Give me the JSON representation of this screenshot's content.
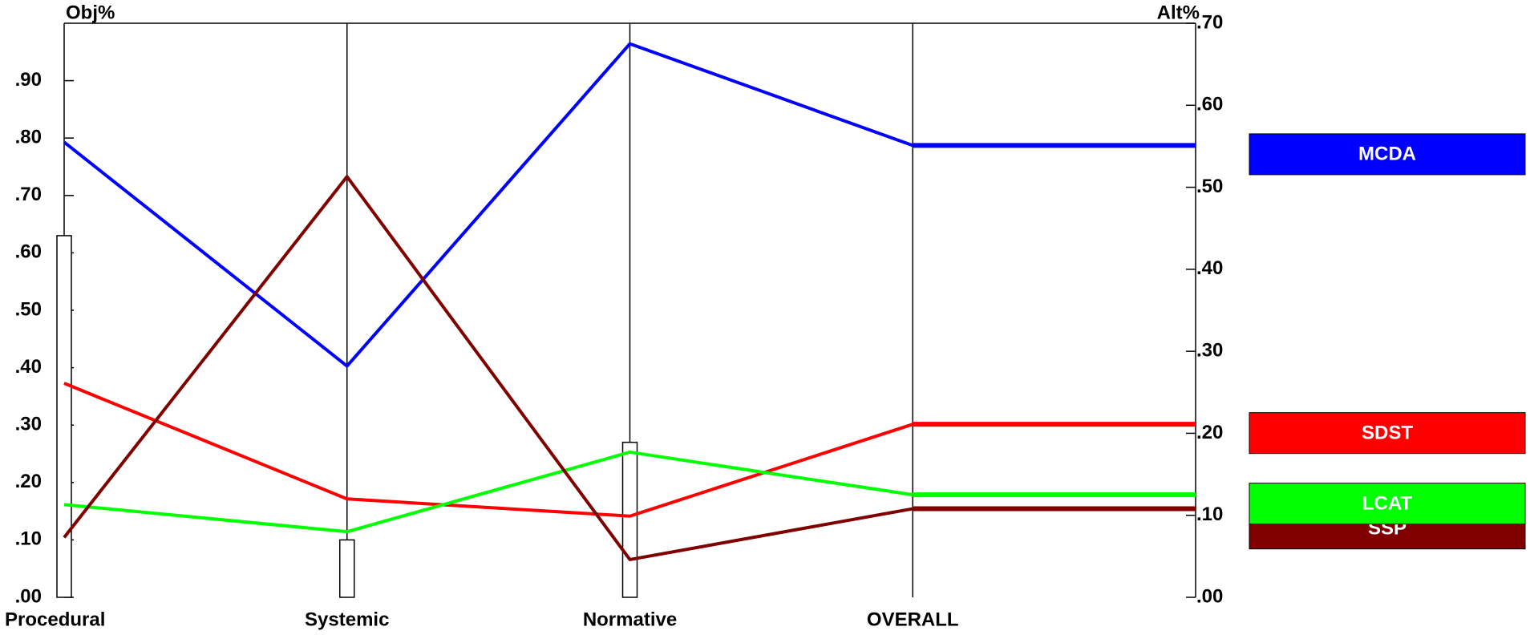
{
  "chart_data": {
    "type": "line",
    "y_axis_label": "Obj%",
    "y2_axis_label": "Alt%",
    "categories": [
      "Procedural",
      "Systemic",
      "Normative",
      "OVERALL"
    ],
    "bar_values": [
      0.63,
      0.1,
      0.27,
      null
    ],
    "bar_color": "#ffffff",
    "series": [
      {
        "name": "MCDA",
        "color": "#0000ff",
        "axis": "y2",
        "values": [
          0.555,
          0.282,
          0.675,
          0.551
        ]
      },
      {
        "name": "SDST",
        "color": "#ff0000",
        "axis": "y2",
        "values": [
          0.261,
          0.12,
          0.099,
          0.211
        ]
      },
      {
        "name": "LCAT",
        "color": "#00ff00",
        "axis": "y2",
        "values": [
          0.113,
          0.08,
          0.177,
          0.125
        ]
      },
      {
        "name": "SSP",
        "color": "#800000",
        "axis": "y2",
        "values": [
          0.073,
          0.513,
          0.046,
          0.108
        ]
      }
    ],
    "ylim": [
      0,
      1.0
    ],
    "yticks": [
      {
        "value": 0,
        "label": ".00"
      },
      {
        "value": 0.1,
        "label": ".10"
      },
      {
        "value": 0.2,
        "label": ".20"
      },
      {
        "value": 0.3,
        "label": ".30"
      },
      {
        "value": 0.4,
        "label": ".40"
      },
      {
        "value": 0.5,
        "label": ".50"
      },
      {
        "value": 0.6,
        "label": ".60"
      },
      {
        "value": 0.7,
        "label": ".70"
      },
      {
        "value": 0.8,
        "label": ".80"
      },
      {
        "value": 0.9,
        "label": ".90"
      }
    ],
    "y2lim": [
      0,
      0.7
    ],
    "y2ticks": [
      {
        "value": 0,
        "label": ".00"
      },
      {
        "value": 0.1,
        "label": ".10"
      },
      {
        "value": 0.2,
        "label": ".20"
      },
      {
        "value": 0.3,
        "label": ".30"
      },
      {
        "value": 0.4,
        "label": ".40"
      },
      {
        "value": 0.5,
        "label": ".50"
      },
      {
        "value": 0.6,
        "label": ".60"
      },
      {
        "value": 0.7,
        "label": ".70"
      }
    ],
    "legend": "right"
  }
}
